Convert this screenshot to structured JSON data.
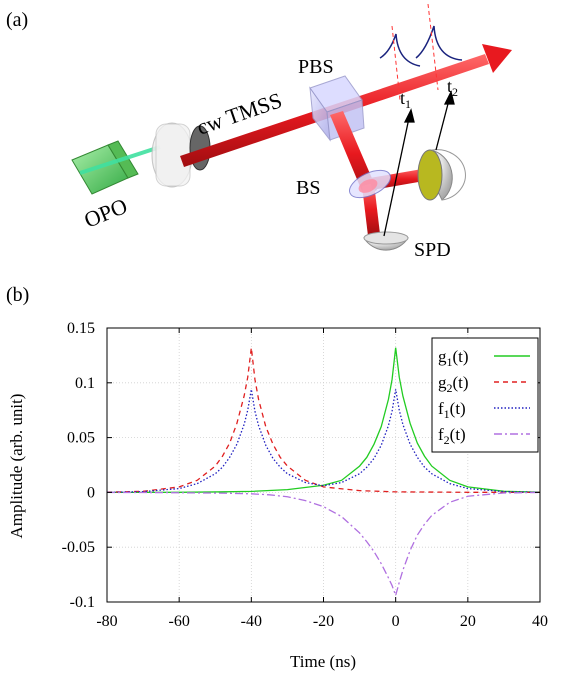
{
  "panel_a": {
    "label": "(a)",
    "opo_label": "OPO",
    "source_label": "cw TMSS",
    "pbs_label": "PBS",
    "bs_label": "BS",
    "spd_label": "SPD",
    "t1_label": "t",
    "t1_sub": "1",
    "t2_label": "t",
    "t2_sub": "2",
    "colors": {
      "beam": "#e8191f",
      "pump": "#40e0a0",
      "crystal": "#66dd66",
      "cube": "#c8c8ff",
      "detector": "#dcdcdc",
      "detector_face": "#b8b820",
      "pulse": "#1a237e",
      "pulse_marker": "#ff3333"
    }
  },
  "panel_b": {
    "label": "(b)"
  },
  "chart_data": {
    "type": "line",
    "xlabel": "Time (ns)",
    "ylabel": "Amplitude (arb. unit)",
    "xlim": [
      -80,
      40
    ],
    "ylim": [
      -0.1,
      0.15
    ],
    "xticks": [
      "-80",
      "-60",
      "-40",
      "-20",
      "0",
      "20",
      "40"
    ],
    "yticks": [
      "-0.1",
      "-0.05",
      "0",
      "0.05",
      "0.1",
      "0.15"
    ],
    "grid": true,
    "legend_position": "top-right",
    "series": [
      {
        "name": "g",
        "sub": "1",
        "suffix": "(t)",
        "style": "solid",
        "color": "#22cc22",
        "x": [
          -80,
          -60,
          -50,
          -40,
          -30,
          -20,
          -15,
          -10,
          -8,
          -6,
          -4,
          -2,
          -1,
          0,
          1,
          2,
          4,
          6,
          8,
          10,
          15,
          20,
          30,
          40
        ],
        "y": [
          0,
          0.0001,
          0.0004,
          0.0009,
          0.0025,
          0.0065,
          0.011,
          0.024,
          0.032,
          0.044,
          0.06,
          0.085,
          0.103,
          0.132,
          0.105,
          0.088,
          0.063,
          0.045,
          0.033,
          0.024,
          0.011,
          0.005,
          0.001,
          0.0002
        ]
      },
      {
        "name": "g",
        "sub": "2",
        "suffix": "(t)",
        "style": "dashed",
        "color": "#e02020",
        "x": [
          -80,
          -70,
          -60,
          -55,
          -50,
          -48,
          -46,
          -44,
          -42,
          -41,
          -40,
          -39,
          -38,
          -36,
          -34,
          -32,
          -30,
          -25,
          -20,
          -10,
          0,
          20,
          40
        ],
        "y": [
          0.0002,
          0.001,
          0.005,
          0.011,
          0.024,
          0.033,
          0.045,
          0.063,
          0.088,
          0.105,
          0.132,
          0.103,
          0.085,
          0.06,
          0.044,
          0.032,
          0.024,
          0.011,
          0.005,
          0.0016,
          0.0005,
          0.0001,
          0
        ]
      },
      {
        "name": "f",
        "sub": "1",
        "suffix": "(t)",
        "style": "dotted",
        "color": "#2020c0",
        "x": [
          -80,
          -70,
          -60,
          -55,
          -50,
          -48,
          -46,
          -44,
          -42,
          -41,
          -40,
          -39,
          -38,
          -36,
          -34,
          -32,
          -30,
          -25,
          -20,
          -15,
          -10,
          -8,
          -6,
          -4,
          -2,
          -1,
          0,
          1,
          2,
          4,
          6,
          8,
          10,
          15,
          20,
          30,
          40
        ],
        "y": [
          0.0001,
          0.0007,
          0.0035,
          0.008,
          0.017,
          0.023,
          0.032,
          0.044,
          0.062,
          0.075,
          0.094,
          0.074,
          0.061,
          0.043,
          0.031,
          0.023,
          0.017,
          0.009,
          0.006,
          0.009,
          0.017,
          0.023,
          0.031,
          0.043,
          0.061,
          0.074,
          0.094,
          0.075,
          0.062,
          0.044,
          0.032,
          0.023,
          0.017,
          0.008,
          0.0035,
          0.0007,
          0.0001
        ]
      },
      {
        "name": "f",
        "sub": "2",
        "suffix": "(t)",
        "style": "dashdot",
        "color": "#b070e0",
        "x": [
          -80,
          -70,
          -60,
          -50,
          -45,
          -40,
          -35,
          -30,
          -25,
          -20,
          -15,
          -10,
          -8,
          -6,
          -4,
          -2,
          -1,
          0,
          1,
          2,
          4,
          6,
          8,
          10,
          15,
          20,
          30,
          40
        ],
        "y": [
          0,
          -0.0001,
          -0.0003,
          -0.0006,
          -0.0009,
          -0.0013,
          -0.0022,
          -0.004,
          -0.0075,
          -0.013,
          -0.022,
          -0.037,
          -0.045,
          -0.054,
          -0.065,
          -0.078,
          -0.085,
          -0.094,
          -0.082,
          -0.071,
          -0.053,
          -0.039,
          -0.029,
          -0.021,
          -0.009,
          -0.0035,
          -0.0005,
          0
        ]
      }
    ]
  }
}
